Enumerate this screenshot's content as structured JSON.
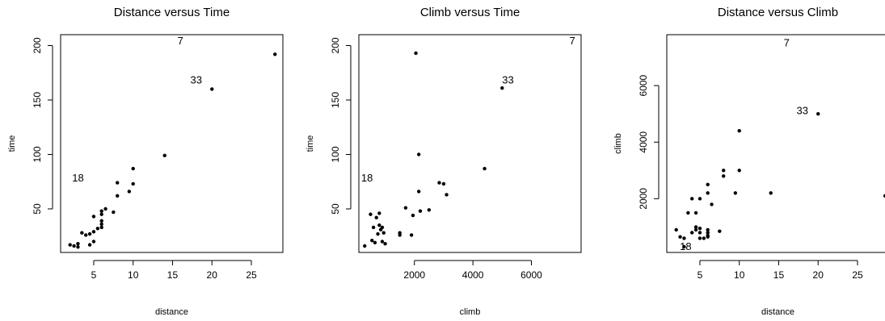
{
  "chart_data": [
    {
      "type": "scatter",
      "title": "Distance versus Time",
      "xlabel": "distance",
      "ylabel": "time",
      "xlim": [
        0.8,
        29
      ],
      "ylim": [
        10,
        210
      ],
      "xticks": [
        5,
        10,
        15,
        20,
        25
      ],
      "yticks": [
        50,
        100,
        150,
        200
      ],
      "points": [
        [
          2.5,
          16
        ],
        [
          3,
          15
        ],
        [
          2,
          17
        ],
        [
          3,
          18
        ],
        [
          3.5,
          28
        ],
        [
          4,
          26
        ],
        [
          4.5,
          27
        ],
        [
          4.5,
          17
        ],
        [
          5,
          20
        ],
        [
          5,
          29
        ],
        [
          5,
          43
        ],
        [
          5.5,
          32
        ],
        [
          6,
          33
        ],
        [
          6,
          36
        ],
        [
          6,
          39
        ],
        [
          6,
          45
        ],
        [
          6,
          48
        ],
        [
          6.5,
          50
        ],
        [
          7.5,
          47
        ],
        [
          8,
          62
        ],
        [
          8,
          74
        ],
        [
          9.5,
          66
        ],
        [
          10,
          73
        ],
        [
          10,
          87
        ],
        [
          14,
          99
        ],
        [
          20,
          160
        ],
        [
          28,
          192
        ]
      ],
      "annotations": [
        {
          "label": "7",
          "x": 16,
          "y": 204
        },
        {
          "label": "33",
          "x": 18,
          "y": 168
        },
        {
          "label": "18",
          "x": 3,
          "y": 78
        }
      ]
    },
    {
      "type": "scatter",
      "title": "Climb versus Time",
      "xlabel": "climb",
      "ylabel": "time",
      "xlim": [
        100,
        7700
      ],
      "ylim": [
        10,
        210
      ],
      "xticks": [
        2000,
        4000,
        6000
      ],
      "yticks": [
        50,
        100,
        150,
        200
      ],
      "points": [
        [
          300,
          16
        ],
        [
          500,
          45
        ],
        [
          550,
          21
        ],
        [
          600,
          33
        ],
        [
          650,
          19
        ],
        [
          700,
          42
        ],
        [
          750,
          27
        ],
        [
          800,
          46
        ],
        [
          800,
          35
        ],
        [
          850,
          31
        ],
        [
          900,
          33
        ],
        [
          900,
          20
        ],
        [
          950,
          28
        ],
        [
          1000,
          18
        ],
        [
          1500,
          28
        ],
        [
          1500,
          26
        ],
        [
          1700,
          51
        ],
        [
          1900,
          26
        ],
        [
          1950,
          44
        ],
        [
          2050,
          193
        ],
        [
          2150,
          100
        ],
        [
          2150,
          66
        ],
        [
          2200,
          48
        ],
        [
          2500,
          49
        ],
        [
          2850,
          74
        ],
        [
          3000,
          73
        ],
        [
          3100,
          63
        ],
        [
          4400,
          87
        ],
        [
          5000,
          161
        ]
      ],
      "annotations": [
        {
          "label": "7",
          "x": 7400,
          "y": 204
        },
        {
          "label": "33",
          "x": 5200,
          "y": 168
        },
        {
          "label": "18",
          "x": 380,
          "y": 78
        }
      ]
    },
    {
      "type": "scatter",
      "title": "Distance versus Climb",
      "xlabel": "distance",
      "ylabel": "climb",
      "xlim": [
        0.8,
        29
      ],
      "ylim": [
        100,
        7800
      ],
      "xticks": [
        5,
        10,
        15,
        20,
        25
      ],
      "yticks": [
        2000,
        4000,
        6000
      ],
      "points": [
        [
          2,
          900
        ],
        [
          2.5,
          650
        ],
        [
          3,
          600
        ],
        [
          3,
          300
        ],
        [
          3.5,
          1500
        ],
        [
          4,
          2000
        ],
        [
          4,
          800
        ],
        [
          4.5,
          1500
        ],
        [
          4.5,
          1000
        ],
        [
          4.5,
          900
        ],
        [
          5,
          950
        ],
        [
          5,
          800
        ],
        [
          5,
          2000
        ],
        [
          5,
          600
        ],
        [
          5.5,
          600
        ],
        [
          6,
          900
        ],
        [
          6,
          800
        ],
        [
          6,
          700
        ],
        [
          6,
          650
        ],
        [
          6,
          2200
        ],
        [
          6,
          2500
        ],
        [
          6.5,
          1800
        ],
        [
          7.5,
          850
        ],
        [
          8,
          3000
        ],
        [
          8,
          2800
        ],
        [
          9.5,
          2200
        ],
        [
          10,
          4400
        ],
        [
          10,
          3000
        ],
        [
          14,
          2200
        ],
        [
          20,
          5000
        ],
        [
          28.5,
          2100
        ]
      ],
      "annotations": [
        {
          "label": "7",
          "x": 16,
          "y": 7500
        },
        {
          "label": "33",
          "x": 18,
          "y": 5100
        },
        {
          "label": "18",
          "x": 3.2,
          "y": 300
        }
      ]
    }
  ]
}
